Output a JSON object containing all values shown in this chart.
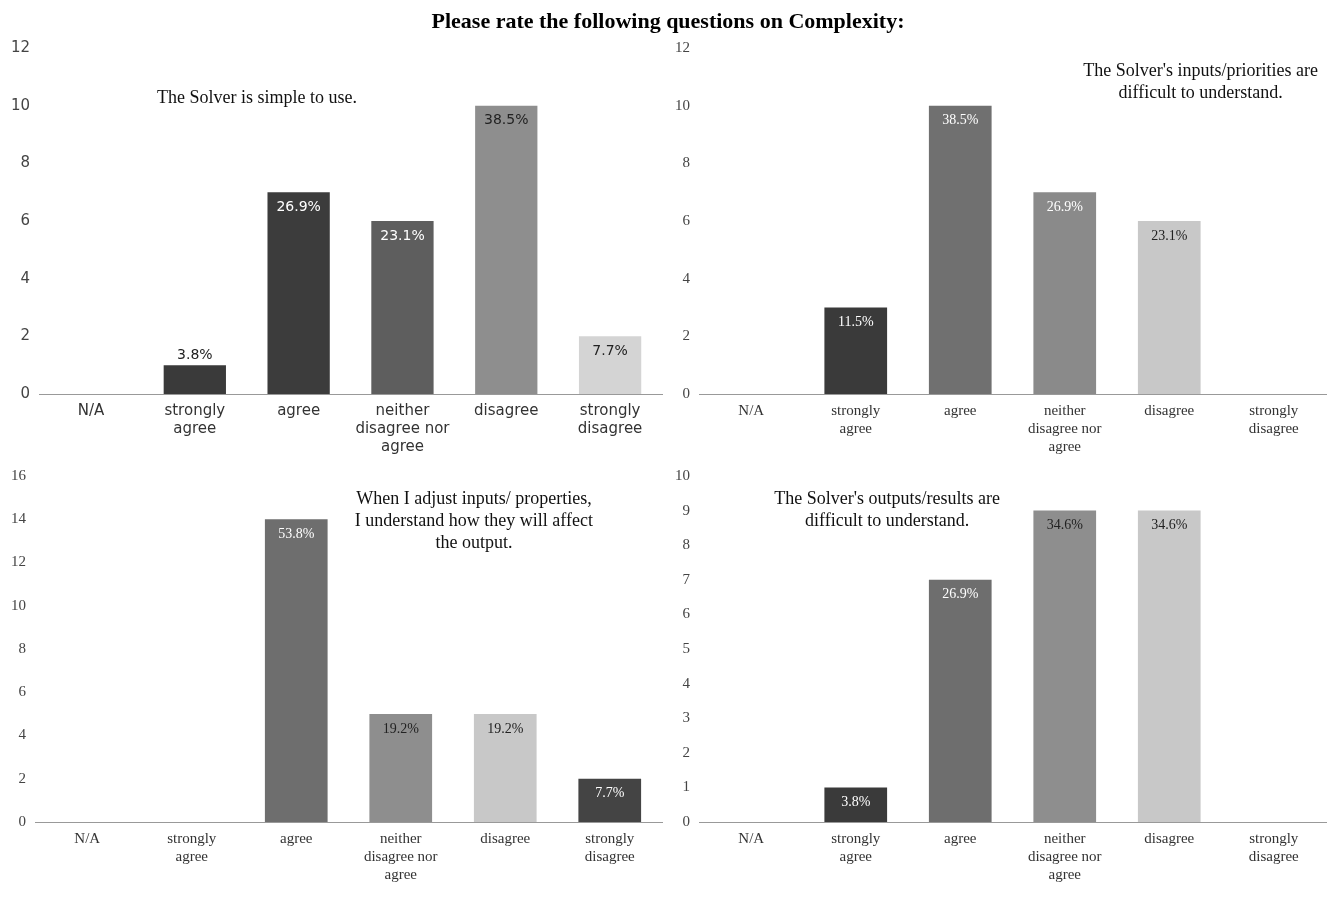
{
  "chart_data": [
    {
      "type": "bar",
      "title": "Please rate the following questions on Complexity:",
      "subtitle": "The Solver is simple to use.",
      "categories": [
        "N/A",
        "strongly agree",
        "agree",
        "neither disagree nor agree",
        "disagree",
        "strongly disagree"
      ],
      "values": [
        0,
        1,
        7,
        6,
        10,
        2
      ],
      "colors": [
        "#3a3a3a",
        "#3a3a3a",
        "#3c3c3c",
        "#5e5e5e",
        "#8e8e8e",
        "#d4d4d4"
      ],
      "annotations": [
        {
          "text": "3.8%",
          "x": "strongly agree",
          "y": 1
        },
        {
          "text": "26.9%",
          "x": "agree",
          "y": 7
        },
        {
          "text": "23.1%",
          "x": "neither disagree nor agree",
          "y": 6
        },
        {
          "text": "38.5%",
          "x": "disagree",
          "y": 10
        },
        {
          "text": "7.7%",
          "x": "strongly disagree",
          "y": 2
        }
      ],
      "ylim": [
        0,
        12
      ],
      "yticks": [
        0,
        2,
        4,
        6,
        8,
        10,
        12
      ],
      "grid": false,
      "legend": false
    },
    {
      "type": "bar",
      "subtitle": "The Solver's inputs/priorities are difficult to understand.",
      "categories": [
        "N/A",
        "strongly agree",
        "agree",
        "neither disagree nor agree",
        "disagree",
        "strongly disagree"
      ],
      "values": [
        0,
        3,
        10,
        7,
        6,
        0
      ],
      "colors": [
        "#3a3a3a",
        "#3a3a3a",
        "#707070",
        "#8a8a8a",
        "#c8c8c8",
        "#d4d4d4"
      ],
      "annotations": [
        {
          "text": "11.5%",
          "x": "strongly agree",
          "y": 3
        },
        {
          "text": "38.5%",
          "x": "agree",
          "y": 10
        },
        {
          "text": "26.9%",
          "x": "neither disagree nor agree",
          "y": 7
        },
        {
          "text": "23.1%",
          "x": "disagree",
          "y": 6
        }
      ],
      "ylim": [
        0,
        12
      ],
      "yticks": [
        0,
        2,
        4,
        6,
        8,
        10,
        12
      ],
      "grid": false,
      "legend": false
    },
    {
      "type": "bar",
      "subtitle": "When I adjust inputs/ properties, I understand how they will affect the output.",
      "categories": [
        "N/A",
        "strongly agree",
        "agree",
        "neither disagree nor agree",
        "disagree",
        "strongly disagree"
      ],
      "values": [
        0,
        0,
        14,
        5,
        5,
        2
      ],
      "colors": [
        "#3a3a3a",
        "#3a3a3a",
        "#6e6e6e",
        "#8e8e8e",
        "#c8c8c8",
        "#444444"
      ],
      "annotations": [
        {
          "text": "53.8%",
          "x": "agree",
          "y": 14
        },
        {
          "text": "19.2%",
          "x": "neither disagree nor agree",
          "y": 5
        },
        {
          "text": "19.2%",
          "x": "disagree",
          "y": 5
        },
        {
          "text": "7.7%",
          "x": "strongly disagree",
          "y": 2
        }
      ],
      "ylim": [
        0,
        16
      ],
      "yticks": [
        0,
        2,
        4,
        6,
        8,
        10,
        12,
        14,
        16
      ],
      "grid": false,
      "legend": false
    },
    {
      "type": "bar",
      "subtitle": "The Solver's outputs/results are difficult to understand.",
      "categories": [
        "N/A",
        "strongly agree",
        "agree",
        "neither disagree nor agree",
        "disagree",
        "strongly disagree"
      ],
      "values": [
        0,
        1,
        7,
        9,
        9,
        0
      ],
      "colors": [
        "#3a3a3a",
        "#3a3a3a",
        "#6e6e6e",
        "#8e8e8e",
        "#c8c8c8",
        "#d4d4d4"
      ],
      "annotations": [
        {
          "text": "3.8%",
          "x": "strongly agree",
          "y": 1
        },
        {
          "text": "26.9%",
          "x": "agree",
          "y": 7
        },
        {
          "text": "34.6%",
          "x": "neither disagree nor agree",
          "y": 9
        },
        {
          "text": "34.6%",
          "x": "disagree",
          "y": 9
        }
      ],
      "ylim": [
        0,
        10
      ],
      "yticks": [
        0,
        1,
        2,
        3,
        4,
        5,
        6,
        7,
        8,
        9,
        10
      ],
      "grid": false,
      "legend": false
    }
  ]
}
